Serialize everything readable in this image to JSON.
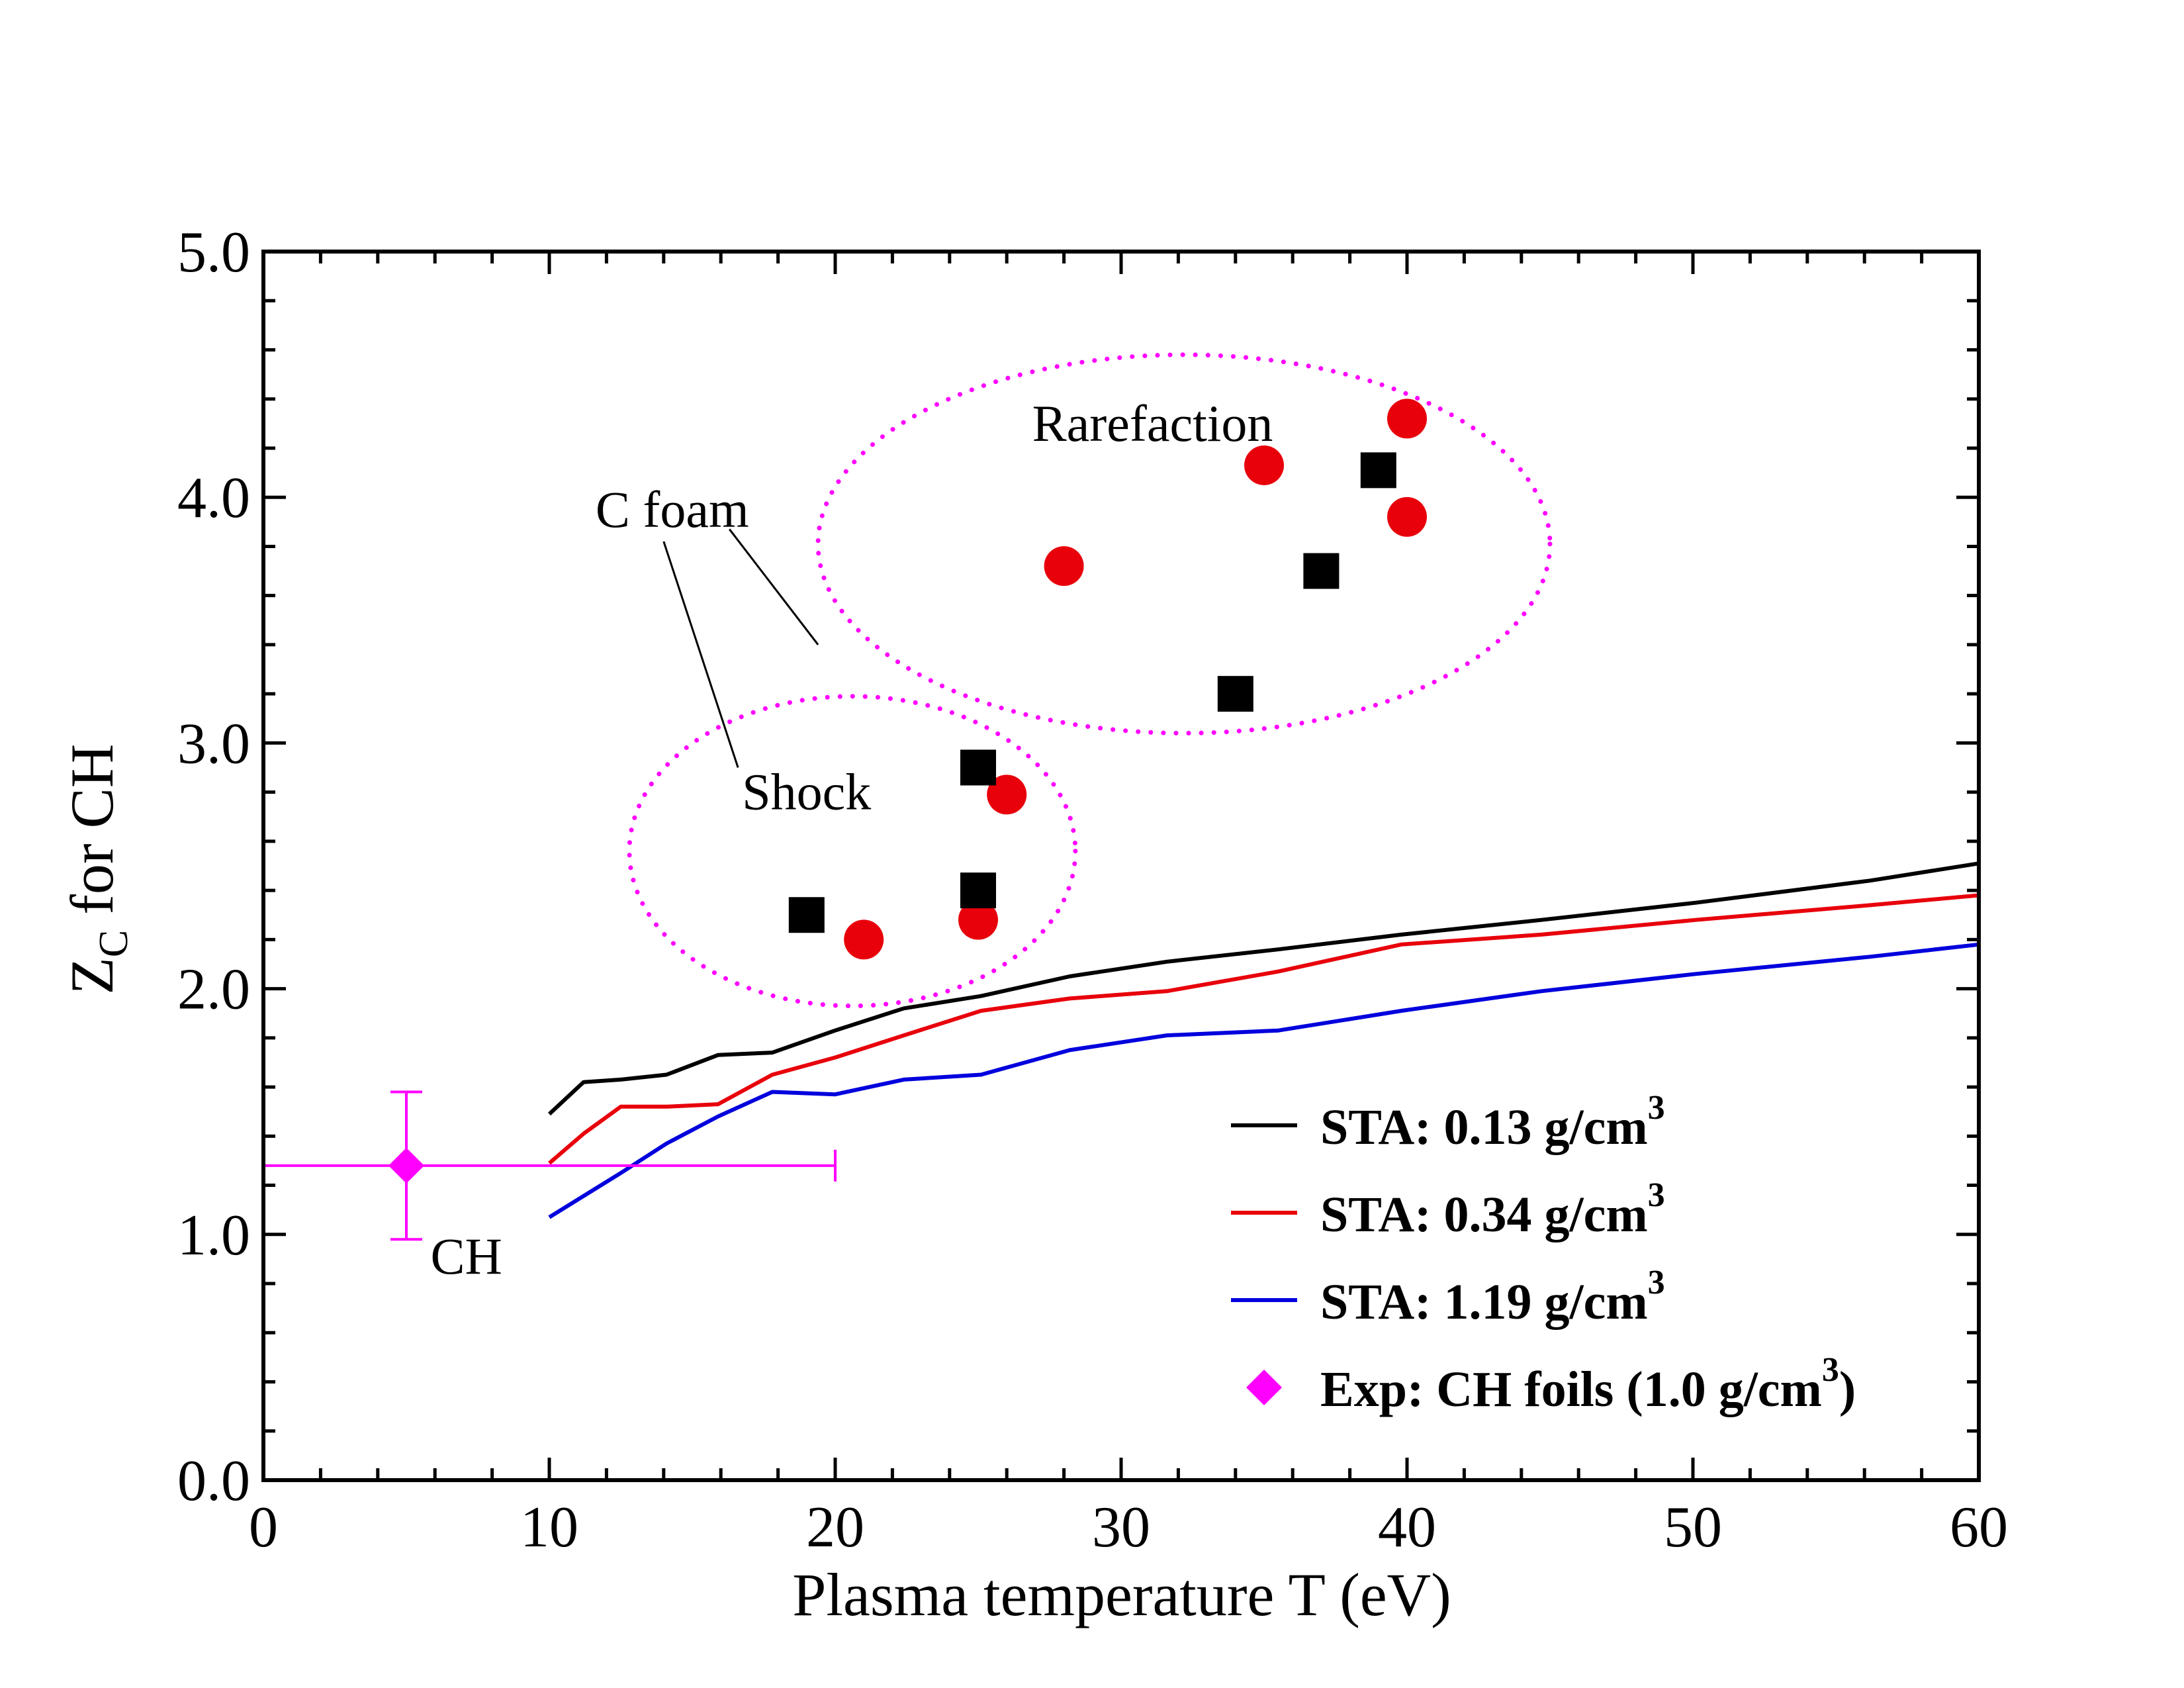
{
  "chart_data": {
    "type": "line",
    "xlabel": "Plasma temperature T (eV)",
    "ylabel_main": "Z",
    "ylabel_sub": "C",
    "ylabel_rest": " for CH",
    "xlim": [
      0,
      60
    ],
    "ylim": [
      0,
      5
    ],
    "xticks": [
      0,
      10,
      20,
      30,
      40,
      50,
      60
    ],
    "xtick_labels": [
      "0",
      "10",
      "20",
      "30",
      "40",
      "50",
      "60"
    ],
    "yticks": [
      0,
      1,
      2,
      3,
      4,
      5
    ],
    "ytick_labels": [
      "0.0",
      "1.0",
      "2.0",
      "3.0",
      "4.0",
      "5.0"
    ],
    "grid": false,
    "legend_position": "bottom-right",
    "series": [
      {
        "name": "STA: 0.13 g/cm",
        "name_sup": "3",
        "name_suffix": "",
        "color": "#000000",
        "x": [
          10,
          11.2,
          12.5,
          14.1,
          15.9,
          17.8,
          20,
          22.4,
          25.1,
          28.2,
          31.6,
          35.5,
          39.8,
          44.7,
          50.1,
          56.2,
          60
        ],
        "y": [
          1.49,
          1.62,
          1.63,
          1.65,
          1.73,
          1.74,
          1.83,
          1.92,
          1.97,
          2.05,
          2.11,
          2.16,
          2.22,
          2.28,
          2.35,
          2.44,
          2.51
        ]
      },
      {
        "name": "STA: 0.34 g/cm",
        "name_sup": "3",
        "name_suffix": "",
        "color": "#e8000b",
        "x": [
          10,
          11.2,
          12.5,
          14.1,
          15.9,
          17.8,
          20,
          22.4,
          25.1,
          28.2,
          31.6,
          35.5,
          39.8,
          44.7,
          50.1,
          56.2,
          60
        ],
        "y": [
          1.29,
          1.41,
          1.52,
          1.52,
          1.53,
          1.65,
          1.72,
          1.81,
          1.91,
          1.96,
          1.99,
          2.07,
          2.18,
          2.22,
          2.28,
          2.34,
          2.38
        ]
      },
      {
        "name": "STA: 1.19 g/cm",
        "name_sup": "3",
        "name_suffix": "",
        "color": "#0000dd",
        "x": [
          10,
          12.5,
          14.1,
          15.9,
          17.8,
          20,
          22.4,
          25.1,
          28.2,
          31.6,
          35.5,
          39.8,
          44.7,
          50.1,
          56.2,
          60
        ],
        "y": [
          1.07,
          1.25,
          1.37,
          1.48,
          1.58,
          1.57,
          1.63,
          1.65,
          1.75,
          1.81,
          1.83,
          1.91,
          1.99,
          2.06,
          2.13,
          2.18
        ]
      }
    ],
    "experiment": {
      "name": "Exp: CH foils (1.0 g/cm",
      "name_sup": "3",
      "name_suffix": ")",
      "color": "#ff00ff",
      "x": 5,
      "y": 1.28,
      "xerr": [
        0,
        20
      ],
      "yerr": [
        0.98,
        1.58
      ],
      "label": "CH"
    },
    "scatter_circles": {
      "color": "#e8000b",
      "points": [
        [
          21,
          2.2
        ],
        [
          25,
          2.28
        ],
        [
          26,
          2.79
        ],
        [
          28,
          3.72
        ],
        [
          35,
          4.13
        ],
        [
          40,
          4.32
        ],
        [
          40,
          3.92
        ]
      ]
    },
    "scatter_squares": {
      "color": "#000000",
      "points": [
        [
          19,
          2.3
        ],
        [
          25,
          2.4
        ],
        [
          25,
          2.9
        ],
        [
          34,
          3.2
        ],
        [
          37,
          3.7
        ],
        [
          39,
          4.11
        ]
      ]
    },
    "ellipses": [
      {
        "label": "Shock",
        "cx": 20.6,
        "cy": 2.56,
        "rx": 7.8,
        "ry": 0.63,
        "label_x": 19,
        "label_y": 2.8
      },
      {
        "label": "Rarefaction",
        "cx": 32.2,
        "cy": 3.81,
        "rx": 12.8,
        "ry": 0.77,
        "label_x": 31.1,
        "label_y": 4.3
      }
    ],
    "annotations": {
      "foam_label": "C foam",
      "foam_label_x": 14.3,
      "foam_label_y": 3.95,
      "foam_pointers": [
        {
          "from": [
            16.3,
            3.87
          ],
          "to": [
            19.4,
            3.4
          ]
        },
        {
          "from": [
            14,
            3.82
          ],
          "to": [
            16.6,
            2.9
          ]
        }
      ]
    },
    "colors": {
      "axes": "#000000",
      "ellipse": "#ff00ff"
    }
  }
}
